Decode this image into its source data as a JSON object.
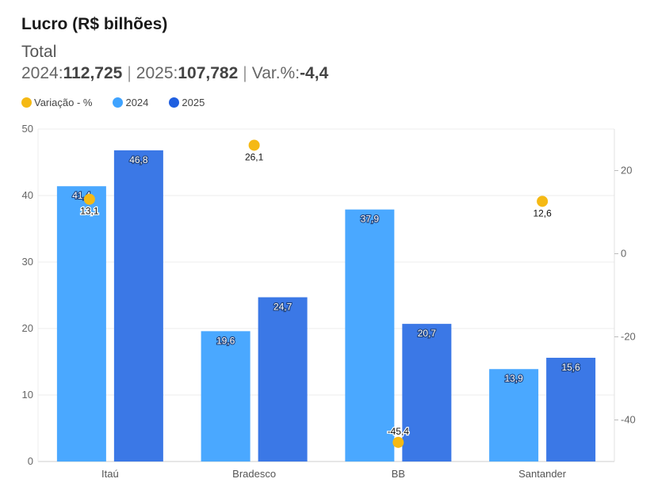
{
  "header": {
    "title": "Lucro (R$ bilhões)",
    "subtitle": "Total",
    "label_2024": "2024:",
    "value_2024": "112,725",
    "label_2025": "2025:",
    "value_2025": "107,782",
    "label_var": "Var.%:",
    "value_var": "-4,4",
    "separator": "|"
  },
  "legend": [
    {
      "label": "Variação - %",
      "color": "#f5b914"
    },
    {
      "label": "2024",
      "color": "#3fa3ff"
    },
    {
      "label": "2025",
      "color": "#1f5fe0"
    }
  ],
  "chart_data": {
    "type": "bar",
    "categories": [
      "Itaú",
      "Bradesco",
      "BB",
      "Santander"
    ],
    "series": [
      {
        "name": "2024",
        "values": [
          41.4,
          19.6,
          37.9,
          13.9
        ],
        "labels": [
          "41,4",
          "19,6",
          "37,9",
          "13,9"
        ],
        "color": "#4aa8ff"
      },
      {
        "name": "2025",
        "values": [
          46.8,
          24.7,
          20.7,
          15.6
        ],
        "labels": [
          "46,8",
          "24,7",
          "20,7",
          "15,6"
        ],
        "color": "#3b78e6"
      }
    ],
    "variation": {
      "name": "Variação - %",
      "values": [
        13.1,
        26.1,
        -45.4,
        12.6
      ],
      "labels": [
        "13,1",
        "26,1",
        "-45,4",
        "12,6"
      ],
      "color": "#f5b914"
    },
    "y_left": {
      "ylim": [
        0,
        50
      ],
      "ticks": [
        0,
        10,
        20,
        30,
        40,
        50
      ]
    },
    "y_right": {
      "ylim": [
        -50,
        30
      ],
      "ticks": [
        -40,
        -20,
        0,
        20
      ]
    },
    "grid": true,
    "legend_position": "top-left"
  }
}
